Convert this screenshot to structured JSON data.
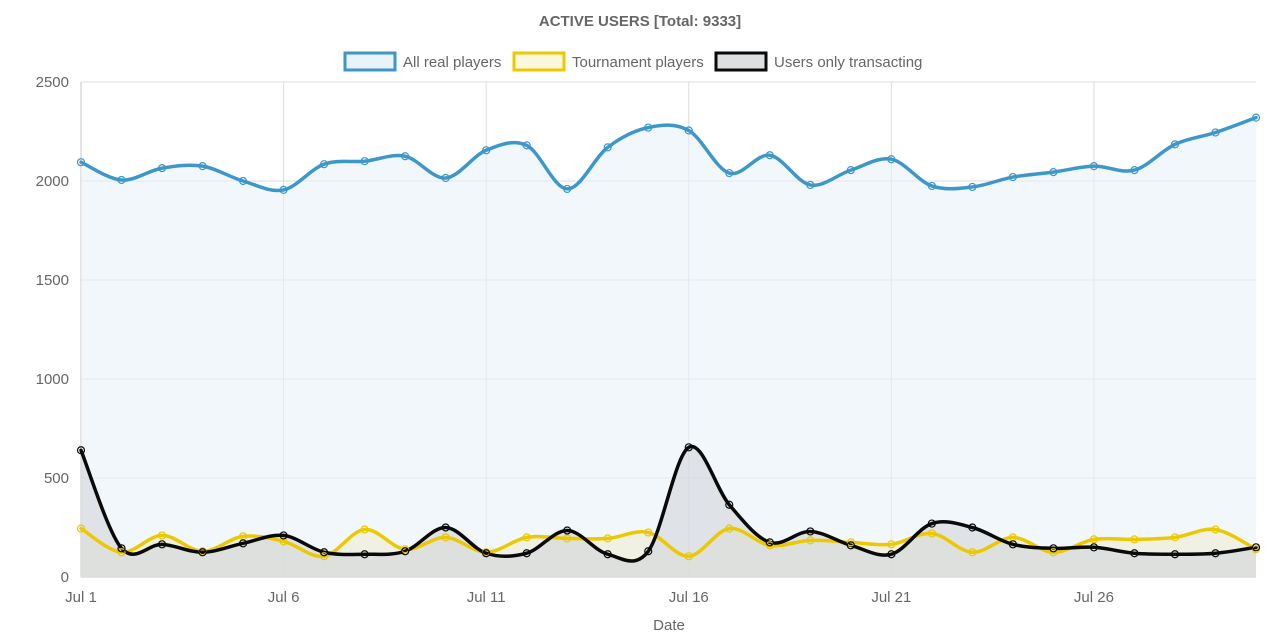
{
  "chart_data": {
    "type": "line",
    "title": "ACTIVE USERS [Total: 9333]",
    "xlabel": "Date",
    "ylabel": "",
    "ylim": [
      0,
      2500
    ],
    "yticks": [
      0,
      500,
      1000,
      1500,
      2000,
      2500
    ],
    "xticks": [
      "Jul 1",
      "Jul 6",
      "Jul 11",
      "Jul 16",
      "Jul 21",
      "Jul 26"
    ],
    "x": [
      "Jul 1",
      "Jul 2",
      "Jul 3",
      "Jul 4",
      "Jul 5",
      "Jul 6",
      "Jul 7",
      "Jul 8",
      "Jul 9",
      "Jul 10",
      "Jul 11",
      "Jul 12",
      "Jul 13",
      "Jul 14",
      "Jul 15",
      "Jul 16",
      "Jul 17",
      "Jul 18",
      "Jul 19",
      "Jul 20",
      "Jul 21",
      "Jul 22",
      "Jul 23",
      "Jul 24",
      "Jul 25",
      "Jul 26",
      "Jul 27",
      "Jul 28",
      "Jul 29",
      "Jul 30"
    ],
    "grid": true,
    "legend_position": "top",
    "series": [
      {
        "name": "All real players",
        "color": "#3d97c9",
        "fill": "#eaf2fa",
        "values": [
          2095,
          2005,
          2065,
          2075,
          2000,
          1955,
          2085,
          2100,
          2125,
          2015,
          2155,
          2180,
          1960,
          2170,
          2270,
          2255,
          2040,
          2130,
          1980,
          2055,
          2110,
          1975,
          1970,
          2020,
          2045,
          2075,
          2055,
          2185,
          2245,
          2320
        ]
      },
      {
        "name": "Tournament players",
        "color": "#ecc800",
        "fill": "#eeedd0",
        "values": [
          245,
          125,
          210,
          130,
          205,
          180,
          105,
          240,
          140,
          200,
          125,
          200,
          195,
          195,
          225,
          105,
          245,
          160,
          185,
          175,
          165,
          220,
          125,
          200,
          125,
          190,
          190,
          200,
          240,
          140
        ]
      },
      {
        "name": "Users only transacting",
        "color": "#0a0a0a",
        "fill": "#d2d6da",
        "values": [
          640,
          145,
          165,
          125,
          170,
          210,
          125,
          115,
          130,
          250,
          120,
          120,
          235,
          115,
          130,
          655,
          365,
          175,
          230,
          160,
          115,
          270,
          250,
          165,
          145,
          150,
          120,
          115,
          120,
          150
        ]
      }
    ]
  }
}
